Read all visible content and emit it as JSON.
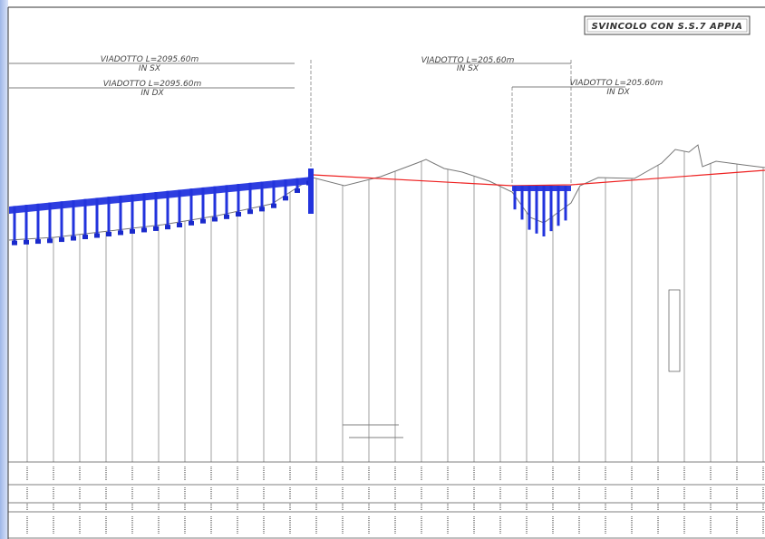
{
  "header": {
    "title": "SVINCOLO CON S.S.7 APPIA"
  },
  "labels": [
    {
      "name": "VIADOTTO L=2095.60m",
      "side": "IN SX"
    },
    {
      "name": "VIADOTTO L=2095.60m",
      "side": "IN DX"
    },
    {
      "name": "VIADOTTO L=205.60m",
      "side": "IN SX"
    },
    {
      "name": "VIADOTTO L=205.60m",
      "side": "IN DX"
    }
  ]
}
